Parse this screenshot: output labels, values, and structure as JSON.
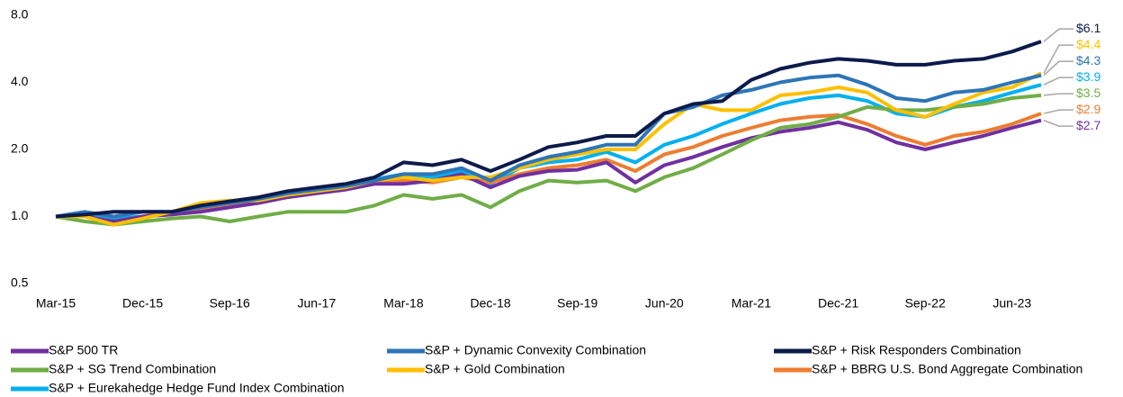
{
  "chart_data": {
    "type": "line",
    "log_y": true,
    "categories": [
      "Mar-15",
      null,
      null,
      "Dec-15",
      null,
      null,
      "Sep-16",
      null,
      null,
      "Jun-17",
      null,
      null,
      "Mar-18",
      null,
      null,
      "Dec-18",
      null,
      null,
      "Sep-19",
      null,
      null,
      "Jun-20",
      null,
      null,
      "Mar-21",
      null,
      null,
      "Dec-21",
      null,
      null,
      "Sep-22",
      null,
      null,
      "Jun-23",
      null
    ],
    "ylim": [
      0.5,
      8
    ],
    "yticks": [
      0.5,
      {
        "value": 1,
        "label": "1.0"
      },
      {
        "value": 2,
        "label": "2.0"
      },
      {
        "value": 4,
        "label": "4.0"
      },
      {
        "value": 8,
        "label": "8.0"
      }
    ],
    "series": [
      {
        "name": "S&P 500 TR",
        "color": "#7030a0",
        "values": [
          1.0,
          1.0,
          0.95,
          1.0,
          1.02,
          1.05,
          1.1,
          1.15,
          1.22,
          1.27,
          1.32,
          1.4,
          1.4,
          1.45,
          1.55,
          1.35,
          1.52,
          1.6,
          1.62,
          1.75,
          1.42,
          1.7,
          1.85,
          2.05,
          2.25,
          2.4,
          2.5,
          2.65,
          2.45,
          2.15,
          2.0,
          2.15,
          2.3,
          2.5,
          2.7
        ],
        "value_labels": [
          null,
          null,
          null,
          null,
          null,
          null,
          null,
          null,
          null,
          null,
          null,
          null,
          null,
          null,
          null,
          null,
          null,
          null,
          null,
          null,
          null,
          null,
          null,
          null,
          null,
          null,
          null,
          null,
          null,
          null,
          null,
          null,
          null,
          null,
          "$2.7"
        ]
      },
      {
        "name": "S&P + Dynamic Convexity Combination",
        "color": "#2e75b6",
        "values": [
          1.0,
          1.05,
          1.0,
          1.05,
          1.05,
          1.1,
          1.15,
          1.2,
          1.27,
          1.32,
          1.37,
          1.45,
          1.55,
          1.55,
          1.65,
          1.45,
          1.7,
          1.85,
          1.95,
          2.1,
          2.1,
          2.9,
          3.1,
          3.5,
          3.7,
          4.0,
          4.2,
          4.3,
          3.9,
          3.4,
          3.3,
          3.6,
          3.7,
          4.0,
          4.3
        ],
        "value_labels": [
          null,
          null,
          null,
          null,
          null,
          null,
          null,
          null,
          null,
          null,
          null,
          null,
          null,
          null,
          null,
          null,
          null,
          null,
          null,
          null,
          null,
          null,
          null,
          null,
          null,
          null,
          null,
          null,
          null,
          null,
          null,
          null,
          null,
          null,
          "$4.3"
        ]
      },
      {
        "name": "S&P + Risk Responders Combination",
        "color": "#0d1b4b",
        "values": [
          1.0,
          1.02,
          1.05,
          1.05,
          1.05,
          1.12,
          1.17,
          1.22,
          1.3,
          1.35,
          1.4,
          1.5,
          1.75,
          1.7,
          1.8,
          1.6,
          1.8,
          2.05,
          2.15,
          2.3,
          2.3,
          2.9,
          3.2,
          3.3,
          4.1,
          4.6,
          4.9,
          5.1,
          5.0,
          4.8,
          4.8,
          5.0,
          5.1,
          5.5,
          6.1
        ],
        "value_labels": [
          null,
          null,
          null,
          null,
          null,
          null,
          null,
          null,
          null,
          null,
          null,
          null,
          null,
          null,
          null,
          null,
          null,
          null,
          null,
          null,
          null,
          null,
          null,
          null,
          null,
          null,
          null,
          null,
          null,
          null,
          null,
          null,
          null,
          null,
          "$6.1"
        ]
      },
      {
        "name": "S&P + SG Trend Combination",
        "color": "#70ad47",
        "values": [
          1.0,
          0.95,
          0.92,
          0.95,
          0.98,
          1.0,
          0.95,
          1.0,
          1.05,
          1.05,
          1.05,
          1.12,
          1.25,
          1.2,
          1.25,
          1.1,
          1.3,
          1.45,
          1.42,
          1.45,
          1.3,
          1.5,
          1.65,
          1.9,
          2.2,
          2.5,
          2.6,
          2.8,
          3.1,
          3.0,
          3.0,
          3.1,
          3.2,
          3.4,
          3.5
        ],
        "value_labels": [
          null,
          null,
          null,
          null,
          null,
          null,
          null,
          null,
          null,
          null,
          null,
          null,
          null,
          null,
          null,
          null,
          null,
          null,
          null,
          null,
          null,
          null,
          null,
          null,
          null,
          null,
          null,
          null,
          null,
          null,
          null,
          null,
          null,
          null,
          "$3.5"
        ]
      },
      {
        "name": "S&P + Gold Combination",
        "color": "#ffc000",
        "values": [
          1.0,
          1.0,
          0.92,
          0.98,
          1.05,
          1.15,
          1.18,
          1.18,
          1.25,
          1.3,
          1.35,
          1.45,
          1.5,
          1.45,
          1.5,
          1.5,
          1.65,
          1.8,
          1.9,
          2.0,
          2.0,
          2.6,
          3.2,
          3.0,
          3.0,
          3.5,
          3.6,
          3.8,
          3.6,
          3.0,
          2.8,
          3.2,
          3.6,
          3.8,
          4.4
        ],
        "value_labels": [
          null,
          null,
          null,
          null,
          null,
          null,
          null,
          null,
          null,
          null,
          null,
          null,
          null,
          null,
          null,
          null,
          null,
          null,
          null,
          null,
          null,
          null,
          null,
          null,
          null,
          null,
          null,
          null,
          null,
          null,
          null,
          null,
          null,
          null,
          "$4.4"
        ]
      },
      {
        "name": "S&P + BBRG U.S. Bond Aggregate Combination",
        "color": "#ed7d31",
        "values": [
          1.0,
          1.0,
          0.95,
          1.0,
          1.05,
          1.08,
          1.12,
          1.18,
          1.25,
          1.3,
          1.35,
          1.42,
          1.45,
          1.42,
          1.5,
          1.42,
          1.55,
          1.65,
          1.7,
          1.8,
          1.6,
          1.9,
          2.05,
          2.3,
          2.5,
          2.7,
          2.8,
          2.85,
          2.6,
          2.3,
          2.1,
          2.3,
          2.4,
          2.6,
          2.9
        ],
        "value_labels": [
          null,
          null,
          null,
          null,
          null,
          null,
          null,
          null,
          null,
          null,
          null,
          null,
          null,
          null,
          null,
          null,
          null,
          null,
          null,
          null,
          null,
          null,
          null,
          null,
          null,
          null,
          null,
          null,
          null,
          null,
          null,
          null,
          null,
          null,
          "$2.9"
        ]
      },
      {
        "name": "S&P + Eurekahedge Hedge Fund Index Combination",
        "color": "#00b0f0",
        "values": [
          1.0,
          1.0,
          0.98,
          1.0,
          1.03,
          1.1,
          1.15,
          1.2,
          1.27,
          1.32,
          1.37,
          1.47,
          1.55,
          1.5,
          1.6,
          1.4,
          1.65,
          1.75,
          1.8,
          1.95,
          1.75,
          2.1,
          2.3,
          2.6,
          2.9,
          3.2,
          3.4,
          3.5,
          3.3,
          2.9,
          2.8,
          3.1,
          3.3,
          3.6,
          3.9
        ],
        "value_labels": [
          null,
          null,
          null,
          null,
          null,
          null,
          null,
          null,
          null,
          null,
          null,
          null,
          null,
          null,
          null,
          null,
          null,
          null,
          null,
          null,
          null,
          null,
          null,
          null,
          null,
          null,
          null,
          null,
          null,
          null,
          null,
          null,
          null,
          null,
          "$3.9"
        ]
      }
    ]
  }
}
